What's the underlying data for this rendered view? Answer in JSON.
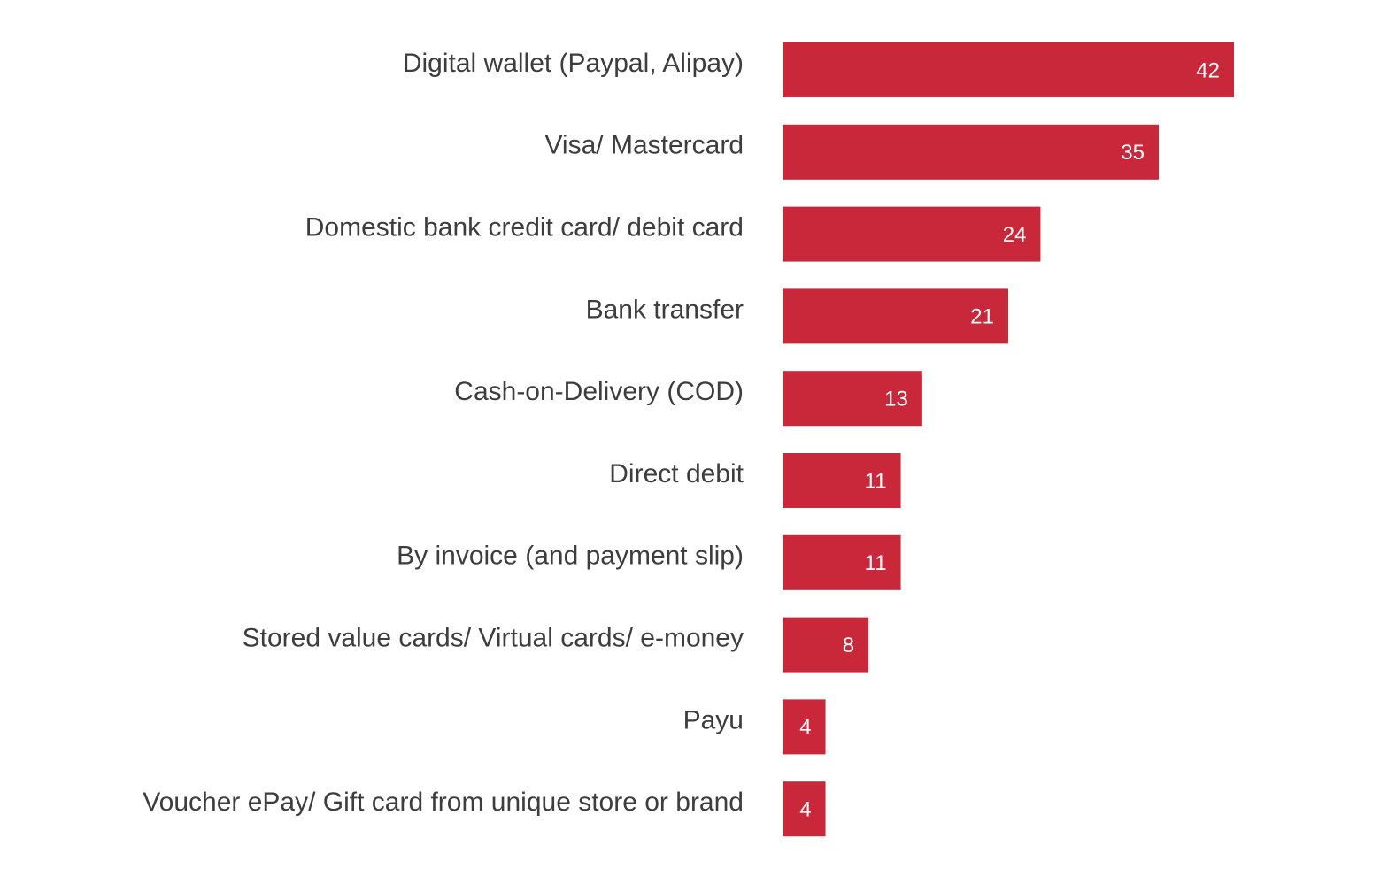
{
  "chart_data": {
    "type": "bar",
    "orientation": "horizontal",
    "categories": [
      "Digital wallet (Paypal, Alipay)",
      "Visa/ Mastercard",
      "Domestic bank credit card/ debit card",
      "Bank transfer",
      "Cash-on-Delivery (COD)",
      "Direct debit",
      "By invoice (and payment slip)",
      "Stored value cards/ Virtual cards/ e-money",
      "Payu",
      "Voucher ePay/ Gift card from unique store or brand"
    ],
    "values": [
      42,
      35,
      24,
      21,
      13,
      11,
      11,
      8,
      4,
      4
    ],
    "title": "",
    "xlabel": "",
    "ylabel": "",
    "xlim": [
      0,
      42
    ],
    "data_labels": "inside-end",
    "grid": false,
    "legend": "none",
    "bar_color": "#c8283a",
    "label_color": "#3d3d3d",
    "value_label_color": "#ffffff"
  }
}
